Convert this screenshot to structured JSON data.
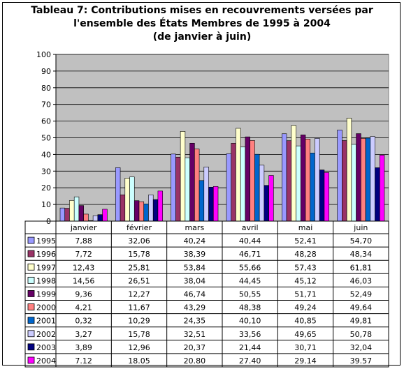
{
  "chart_data": {
    "type": "bar",
    "title": [
      "Tableau 7: Contributions mises en recouvrements versées par",
      "l'ensemble des États Membres de 1995 à 2004",
      "(de janvier à juin)"
    ],
    "categories": [
      "janvier",
      "février",
      "mars",
      "avril",
      "mai",
      "juin"
    ],
    "ylim": [
      0,
      100
    ],
    "yticks": [
      "0",
      "10",
      "20",
      "30",
      "40",
      "50",
      "60",
      "70",
      "80",
      "90",
      "100"
    ],
    "grid": true,
    "legend": "data-table",
    "series": [
      {
        "name": "1995",
        "color": "#9999ff",
        "values": [
          7.88,
          32.06,
          40.24,
          40.44,
          52.41,
          54.7
        ],
        "labels": [
          "7,88",
          "32,06",
          "40,24",
          "40,44",
          "52,41",
          "54,70"
        ]
      },
      {
        "name": "1996",
        "color": "#993366",
        "values": [
          7.72,
          15.78,
          38.39,
          46.71,
          48.28,
          48.34
        ],
        "labels": [
          "7,72",
          "15,78",
          "38,39",
          "46,71",
          "48,28",
          "48,34"
        ]
      },
      {
        "name": "1997",
        "color": "#ffffcc",
        "values": [
          12.43,
          25.81,
          53.84,
          55.66,
          57.43,
          61.81
        ],
        "labels": [
          "12,43",
          "25,81",
          "53,84",
          "55,66",
          "57,43",
          "61,81"
        ]
      },
      {
        "name": "1998",
        "color": "#ccffff",
        "values": [
          14.56,
          26.51,
          38.04,
          44.45,
          45.12,
          46.03
        ],
        "labels": [
          "14,56",
          "26,51",
          "38,04",
          "44,45",
          "45,12",
          "46,03"
        ]
      },
      {
        "name": "1999",
        "color": "#660066",
        "values": [
          9.36,
          12.27,
          46.74,
          50.55,
          51.71,
          52.49
        ],
        "labels": [
          "9,36",
          "12,27",
          "46,74",
          "50,55",
          "51,71",
          "52,49"
        ]
      },
      {
        "name": "2000",
        "color": "#ff8080",
        "values": [
          4.21,
          11.67,
          43.29,
          48.38,
          49.24,
          49.64
        ],
        "labels": [
          "4,21",
          "11,67",
          "43,29",
          "48,38",
          "49,24",
          "49,64"
        ]
      },
      {
        "name": "2001",
        "color": "#0066cc",
        "values": [
          0.32,
          10.29,
          24.35,
          40.1,
          40.85,
          49.81
        ],
        "labels": [
          "0,32",
          "10,29",
          "24,35",
          "40,10",
          "40,85",
          "49,81"
        ]
      },
      {
        "name": "2002",
        "color": "#ccccff",
        "values": [
          3.27,
          15.78,
          32.51,
          33.56,
          49.65,
          50.78
        ],
        "labels": [
          "3,27",
          "15,78",
          "32,51",
          "33,56",
          "49,65",
          "50,78"
        ]
      },
      {
        "name": "2003",
        "color": "#000080",
        "values": [
          3.89,
          12.96,
          20.37,
          21.44,
          30.71,
          32.04
        ],
        "labels": [
          "3,89",
          "12,96",
          "20,37",
          "21,44",
          "30,71",
          "32,04"
        ]
      },
      {
        "name": "2004",
        "color": "#ff00ff",
        "values": [
          7.12,
          18.05,
          20.8,
          27.4,
          29.14,
          39.57
        ],
        "labels": [
          "7.12",
          "18.05",
          "20.80",
          "27.40",
          "29.14",
          "39.57"
        ]
      }
    ]
  }
}
